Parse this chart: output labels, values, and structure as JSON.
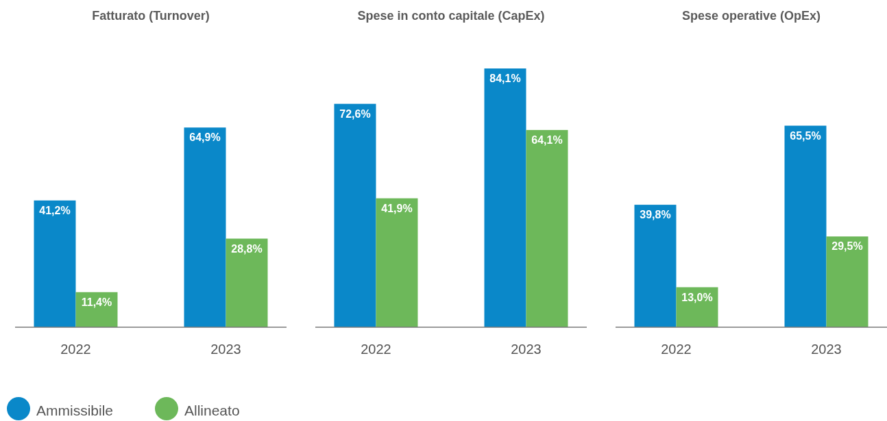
{
  "chart_data": [
    {
      "type": "bar",
      "title": "Fatturato (Turnover)",
      "categories": [
        "2022",
        "2023"
      ],
      "series": [
        {
          "name": "Ammissibile",
          "color": "#0a88c9",
          "values": [
            41.2,
            64.9
          ],
          "value_labels": [
            "41,2%",
            "64,9%"
          ]
        },
        {
          "name": "Allineato",
          "color": "#6db85a",
          "values": [
            11.4,
            28.8
          ],
          "value_labels": [
            "11,4%",
            "28,8%"
          ]
        }
      ],
      "legend": "bottom"
    },
    {
      "type": "bar",
      "title": "Spese in conto capitale (CapEx)",
      "categories": [
        "2022",
        "2023"
      ],
      "series": [
        {
          "color": "#0a88c9",
          "values": [
            72.6,
            84.1
          ],
          "value_labels": [
            "72,6%",
            "84,1%"
          ]
        },
        {
          "color": "#6db85a",
          "values": [
            41.9,
            64.1
          ],
          "value_labels": [
            "41,9%",
            "64,1%"
          ]
        }
      ]
    },
    {
      "type": "bar",
      "title": "Spese operative (OpEx)",
      "categories": [
        "2022",
        "2023"
      ],
      "series": [
        {
          "color": "#0a88c9",
          "values": [
            39.8,
            65.5
          ],
          "value_labels": [
            "39,8%",
            "65,5%"
          ]
        },
        {
          "color": "#6db85a",
          "values": [
            13.0,
            29.5
          ],
          "value_labels": [
            "13,0%",
            "29,5%"
          ]
        }
      ]
    }
  ]
}
